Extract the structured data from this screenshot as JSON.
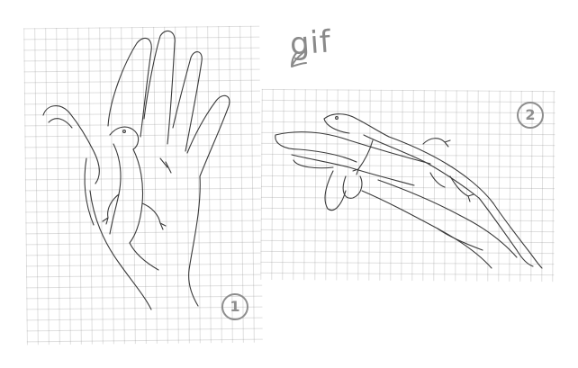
{
  "annotation": {
    "gif_label": "gif"
  },
  "sketch_1": {
    "number": "1"
  },
  "sketch_2": {
    "number": "2"
  },
  "colors": {
    "pencil": "#3a3a3a",
    "label_gray": "#8a8a8a",
    "grid": "#b8b8b8"
  }
}
